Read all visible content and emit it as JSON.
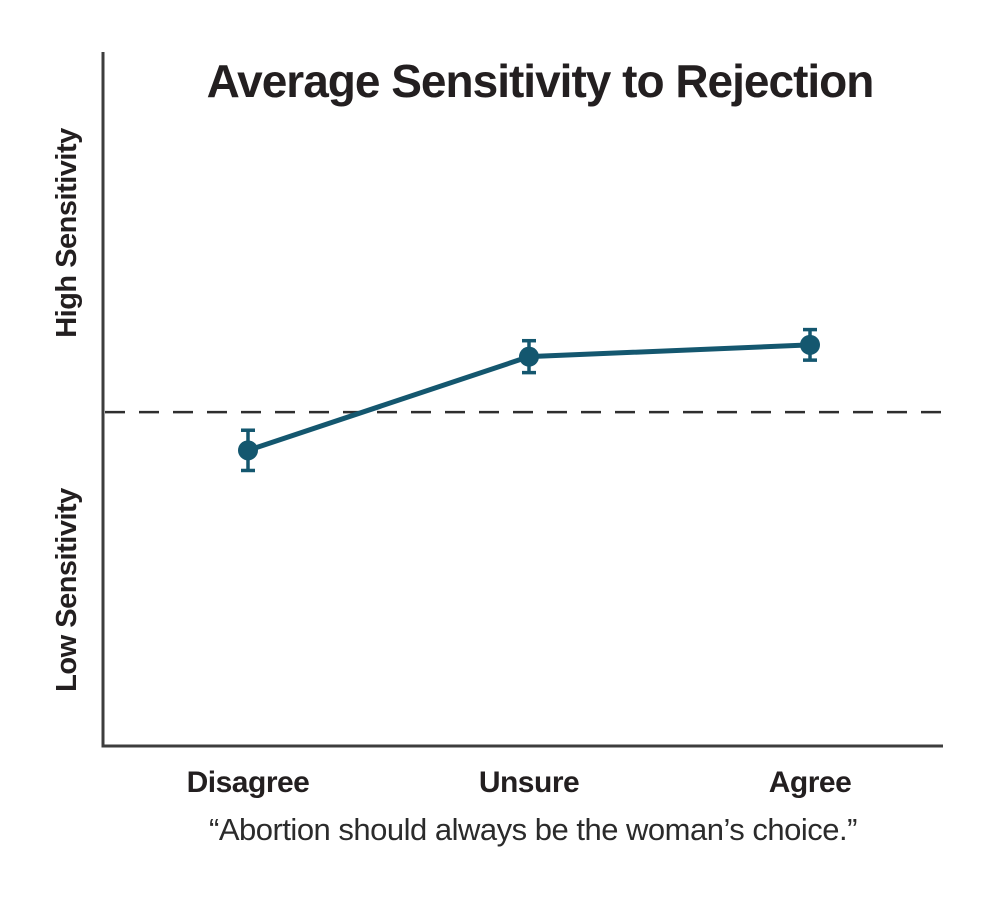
{
  "figure": {
    "background": "#ffffff",
    "text_color": "#231f20",
    "axis_color": "#3d3d3d",
    "accent_color": "#14576f"
  },
  "chart_data": {
    "type": "line",
    "title": "Average Sensitivity to Rejection",
    "categories": [
      "Disagree",
      "Unsure",
      "Agree"
    ],
    "series": [
      {
        "name": "Average Sensitivity to Rejection",
        "values": [
          0.426,
          0.561,
          0.578
        ],
        "error_bars": [
          0.029,
          0.023,
          0.022
        ],
        "color": "#14576f",
        "marker": "filled-circle"
      }
    ],
    "reference_line": {
      "value": 0.481,
      "style": "dashed",
      "color": "#2e2e2e"
    },
    "y_axis": {
      "label_top": "High Sensitivity",
      "label_bottom": "Low Sensitivity",
      "numeric_ticks": false,
      "range": [
        0,
        1
      ]
    },
    "x_axis": {
      "caption": "“Abortion should always be the woman’s choice.”"
    },
    "grid": false,
    "legend": false
  }
}
